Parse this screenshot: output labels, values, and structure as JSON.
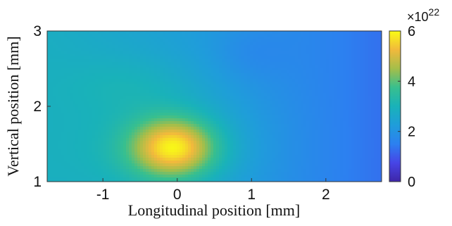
{
  "chart_data": {
    "type": "heatmap",
    "title": "",
    "xlabel": "Longitudinal position [mm]",
    "ylabel": "Vertical position [mm]",
    "xlim": [
      -1.75,
      2.75
    ],
    "ylim": [
      1,
      3
    ],
    "xticks": [
      -1,
      0,
      1,
      2
    ],
    "xtick_labels": [
      "-1",
      "0",
      "1",
      "2"
    ],
    "yticks": [
      1,
      2,
      3
    ],
    "ytick_labels": [
      "1",
      "2",
      "3"
    ],
    "colormap": "parula",
    "colorbar": {
      "min": 0,
      "max": 6,
      "ticks": [
        0,
        2,
        4,
        6
      ],
      "tick_labels": [
        "0",
        "2",
        "4",
        "6"
      ],
      "multiplier_base": "×10",
      "multiplier_exponent": "22",
      "placement": "right"
    },
    "peak": {
      "x": -0.05,
      "y": 1.45,
      "value": 5.6
    },
    "background_left": 2.8,
    "background_right": 1.3,
    "grid": false
  }
}
